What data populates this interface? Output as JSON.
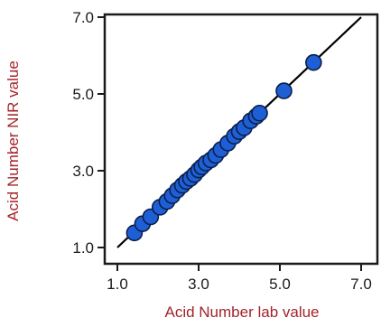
{
  "chart_data": {
    "type": "scatter",
    "xlabel": "Acid Number lab value",
    "ylabel": "Acid Number NIR value",
    "xlim": [
      1.0,
      7.0
    ],
    "ylim": [
      1.0,
      7.0
    ],
    "xticks": [
      "1.0",
      "3.0",
      "5.0",
      "7.0"
    ],
    "yticks": [
      "1.0",
      "3.0",
      "5.0",
      "7.0"
    ],
    "grid": false,
    "label_color": "#a3242b",
    "marker_color": "#1f5fd6",
    "marker_edge_color": "#0a1f4a",
    "line_color": "#000000",
    "fit_line": {
      "x": [
        1.0,
        7.0
      ],
      "y": [
        1.0,
        7.0
      ]
    },
    "series": [
      {
        "x": [
          1.42,
          1.62,
          1.82,
          2.05,
          2.22,
          2.35,
          2.48,
          2.6,
          2.7,
          2.8,
          2.9,
          3.0,
          3.08,
          3.18,
          3.3,
          3.42,
          3.55,
          3.72,
          3.88,
          4.0,
          4.12,
          4.28,
          4.42,
          4.5,
          5.1,
          5.83
        ],
        "y": [
          1.38,
          1.62,
          1.8,
          2.05,
          2.2,
          2.35,
          2.5,
          2.62,
          2.72,
          2.8,
          2.9,
          3.02,
          3.1,
          3.2,
          3.28,
          3.4,
          3.55,
          3.72,
          3.9,
          4.02,
          4.12,
          4.3,
          4.42,
          4.5,
          5.08,
          5.82
        ]
      }
    ]
  }
}
